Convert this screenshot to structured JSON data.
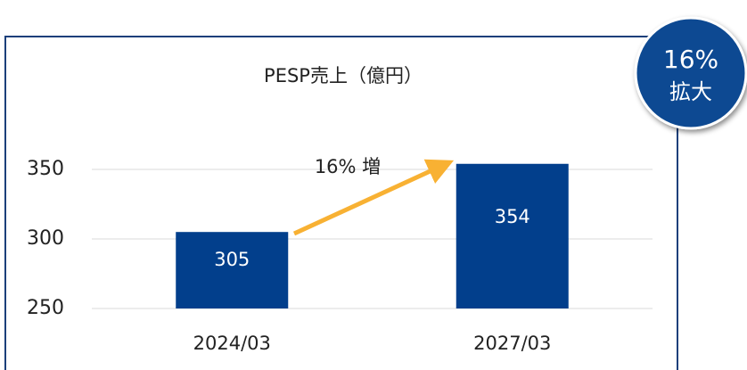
{
  "chart_data": {
    "type": "bar",
    "title": "PESP売上（億円）",
    "categories": [
      "2024/03",
      "2027/03"
    ],
    "values": [
      305,
      354
    ],
    "color": "#023f8c",
    "ylim": [
      250,
      350
    ],
    "yticks": [
      250,
      300,
      350
    ],
    "grid": true,
    "annotation": "16% 増",
    "badge": {
      "value": "16%",
      "label": "拡大"
    }
  }
}
